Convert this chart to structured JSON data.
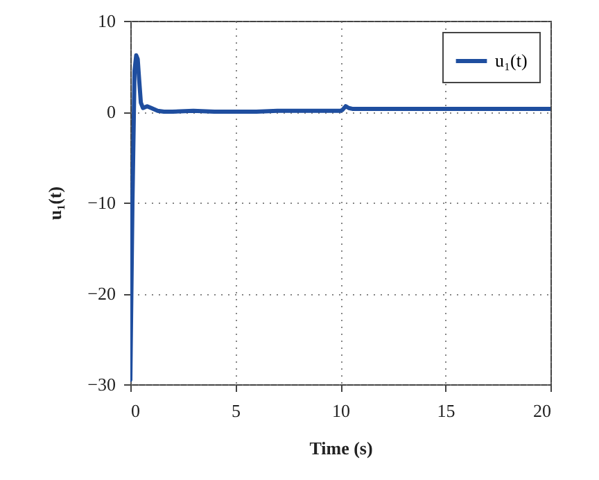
{
  "chart_data": {
    "type": "line",
    "xlabel": "Time (s)",
    "ylabel": "u₁(t)",
    "x": [
      0,
      0.1,
      0.2,
      0.28,
      0.35,
      0.42,
      0.5,
      0.6,
      0.8,
      1.0,
      1.3,
      1.6,
      2,
      3,
      4,
      5,
      6,
      7,
      8,
      9,
      10,
      10.1,
      10.25,
      10.4,
      10.6,
      11,
      12,
      14,
      16,
      18,
      20
    ],
    "series": [
      {
        "name": "u₁(t)",
        "color": "#1f4e9f",
        "values": [
          -29.5,
          -10,
          4.5,
          6.2,
          5.8,
          3.5,
          1.0,
          0.4,
          0.6,
          0.4,
          0.1,
          0.0,
          0.0,
          0.1,
          0.0,
          0.0,
          0.0,
          0.1,
          0.1,
          0.1,
          0.1,
          0.2,
          0.6,
          0.4,
          0.3,
          0.3,
          0.3,
          0.3,
          0.3,
          0.3,
          0.3
        ]
      }
    ],
    "xlim": [
      0,
      20
    ],
    "ylim": [
      -30,
      10
    ],
    "xticks": [
      0,
      5,
      10,
      15,
      20
    ],
    "yticks": [
      -30,
      -20,
      -10,
      0,
      10
    ],
    "grid": true,
    "legend": "top right",
    "line_style": "solid"
  }
}
